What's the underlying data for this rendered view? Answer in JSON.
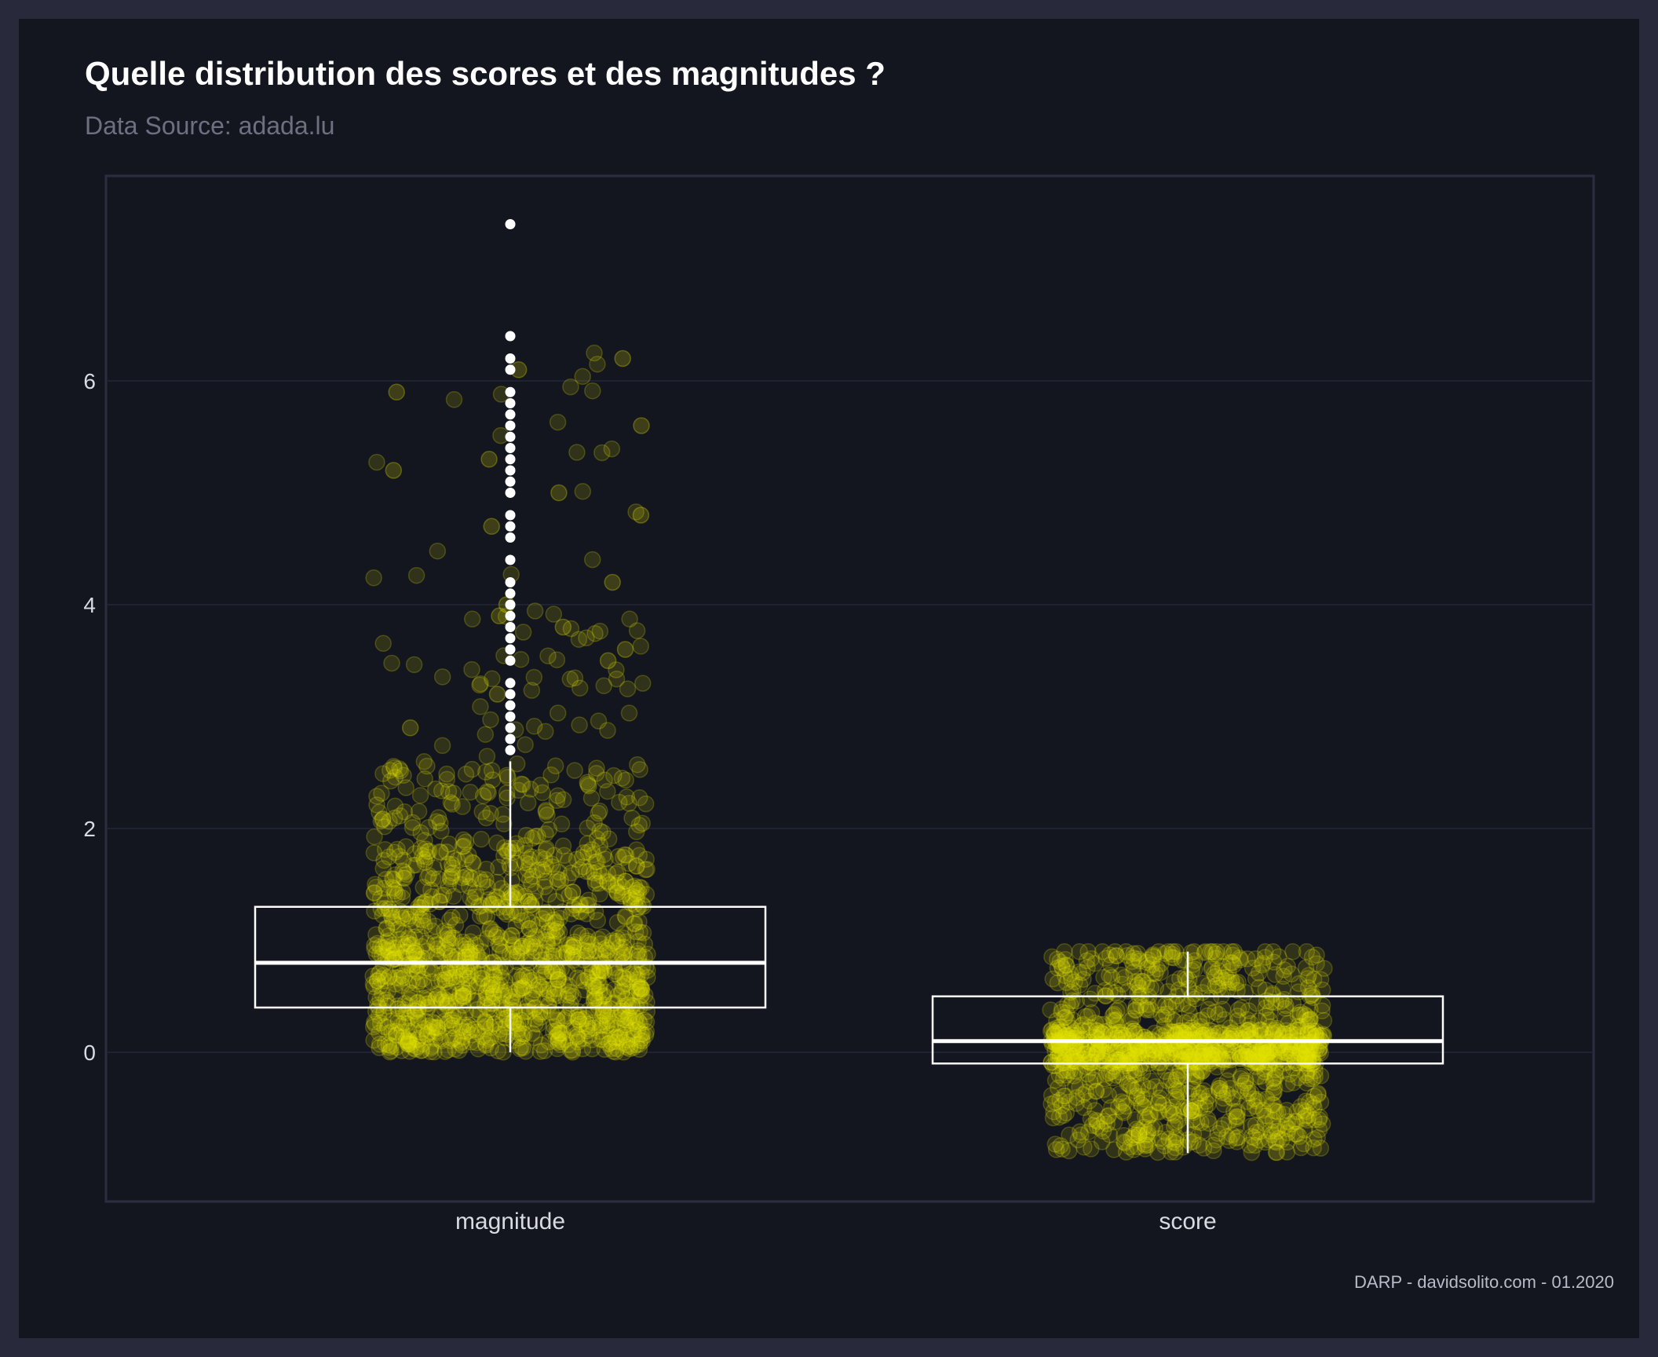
{
  "title": "Quelle distribution des scores et des magnitudes ?",
  "subtitle": "Data Source: adada.lu",
  "caption": "DARP - davidsolito.com - 01.2020",
  "colors": {
    "page_border": "#282a3c",
    "background": "#14161f",
    "panel_border": "#2b2e40",
    "grid": "#1f2230",
    "points": "#e6e600",
    "box": "#ffffff",
    "outliers": "#ffffff"
  },
  "chart_data": {
    "type": "boxplot",
    "title": "Quelle distribution des scores et des magnitudes ?",
    "subtitle": "Data Source: adada.lu",
    "xlabel": "",
    "ylabel": "",
    "categories": [
      "magnitude",
      "score"
    ],
    "y_ticks": [
      0,
      2,
      4,
      6
    ],
    "ylim": [
      -1.33,
      7.8
    ],
    "grid": true,
    "legend": "none",
    "boxes": [
      {
        "category": "magnitude",
        "q1": 0.4,
        "median": 0.8,
        "q3": 1.3,
        "whisker_low": 0.0,
        "whisker_high": 2.6,
        "outliers": [
          2.7,
          2.8,
          2.9,
          3.0,
          3.1,
          3.2,
          3.3,
          3.5,
          3.6,
          3.7,
          3.8,
          3.9,
          4.0,
          4.1,
          4.2,
          4.4,
          4.6,
          4.7,
          4.8,
          5.0,
          5.1,
          5.2,
          5.3,
          5.4,
          5.5,
          5.6,
          5.7,
          5.8,
          5.9,
          6.1,
          6.2,
          6.4,
          7.4
        ],
        "points_range": [
          0.0,
          7.4
        ]
      },
      {
        "category": "score",
        "q1": -0.1,
        "median": 0.1,
        "q3": 0.5,
        "whisker_low": -0.9,
        "whisker_high": 0.9,
        "outliers": [],
        "points_range": [
          -0.9,
          0.9
        ]
      }
    ]
  }
}
